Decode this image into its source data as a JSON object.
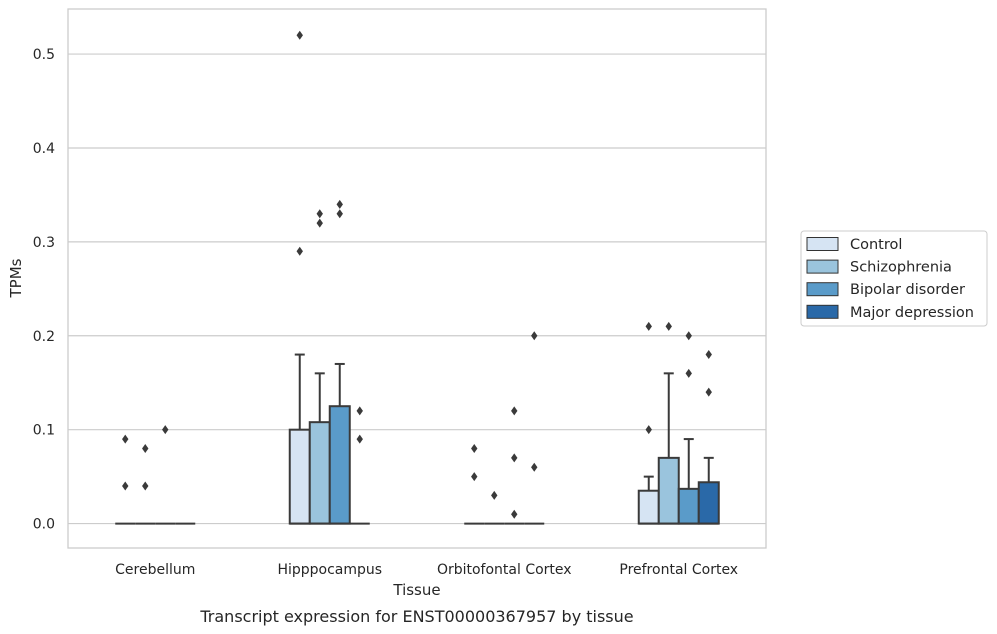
{
  "chart_data": {
    "type": "box",
    "title": "",
    "caption": "Transcript expression for ENST00000367957 by tissue",
    "xlabel": "Tissue",
    "ylabel": "TPMs",
    "ylim": [
      -0.026,
      0.548
    ],
    "yticks": [
      "0.0",
      "0.1",
      "0.2",
      "0.3",
      "0.4",
      "0.5"
    ],
    "ytick_values": [
      0.0,
      0.1,
      0.2,
      0.3,
      0.4,
      0.5
    ],
    "grid": true,
    "legend_position": "right",
    "categories": [
      "Cerebellum",
      "Hipppocampus",
      "Orbitofontal Cortex",
      "Prefrontal Cortex"
    ],
    "series": [
      {
        "name": "Control",
        "color": "#d6e4f3",
        "boxes": [
          {
            "q1": 0,
            "median": 0,
            "q3": 0,
            "whisker_low": 0,
            "whisker_high": 0,
            "outliers": [
              0.04,
              0.09
            ]
          },
          {
            "q1": 0,
            "median": 0,
            "q3": 0.1,
            "whisker_low": 0,
            "whisker_high": 0.18,
            "outliers": [
              0.29,
              0.52
            ]
          },
          {
            "q1": 0,
            "median": 0,
            "q3": 0,
            "whisker_low": 0,
            "whisker_high": 0,
            "outliers": [
              0.05,
              0.08
            ]
          },
          {
            "q1": 0,
            "median": 0,
            "q3": 0.035,
            "whisker_low": 0,
            "whisker_high": 0.05,
            "outliers": [
              0.1,
              0.21
            ]
          }
        ]
      },
      {
        "name": "Schizophrenia",
        "color": "#9ac4dd",
        "boxes": [
          {
            "q1": 0,
            "median": 0,
            "q3": 0,
            "whisker_low": 0,
            "whisker_high": 0,
            "outliers": [
              0.04,
              0.08
            ]
          },
          {
            "q1": 0,
            "median": 0,
            "q3": 0.108,
            "whisker_low": 0,
            "whisker_high": 0.16,
            "outliers": [
              0.32,
              0.33
            ]
          },
          {
            "q1": 0,
            "median": 0,
            "q3": 0,
            "whisker_low": 0,
            "whisker_high": 0,
            "outliers": [
              0.03
            ]
          },
          {
            "q1": 0,
            "median": 0,
            "q3": 0.07,
            "whisker_low": 0,
            "whisker_high": 0.16,
            "outliers": [
              0.21
            ]
          }
        ]
      },
      {
        "name": "Bipolar disorder",
        "color": "#5a9bc9",
        "boxes": [
          {
            "q1": 0,
            "median": 0,
            "q3": 0,
            "whisker_low": 0,
            "whisker_high": 0,
            "outliers": [
              0.1
            ]
          },
          {
            "q1": 0,
            "median": 0,
            "q3": 0.125,
            "whisker_low": 0,
            "whisker_high": 0.17,
            "outliers": [
              0.33,
              0.34
            ]
          },
          {
            "q1": 0,
            "median": 0,
            "q3": 0,
            "whisker_low": 0,
            "whisker_high": 0,
            "outliers": [
              0.01,
              0.07,
              0.12
            ]
          },
          {
            "q1": 0,
            "median": 0,
            "q3": 0.037,
            "whisker_low": 0,
            "whisker_high": 0.09,
            "outliers": [
              0.16,
              0.2
            ]
          }
        ]
      },
      {
        "name": "Major depression",
        "color": "#2a69a8",
        "boxes": [
          {
            "q1": 0,
            "median": 0,
            "q3": 0,
            "whisker_low": 0,
            "whisker_high": 0,
            "outliers": []
          },
          {
            "q1": 0,
            "median": 0,
            "q3": 0,
            "whisker_low": 0,
            "whisker_high": 0,
            "outliers": [
              0.09,
              0.12
            ]
          },
          {
            "q1": 0,
            "median": 0,
            "q3": 0,
            "whisker_low": 0,
            "whisker_high": 0,
            "outliers": [
              0.06,
              0.2
            ]
          },
          {
            "q1": 0,
            "median": 0,
            "q3": 0.044,
            "whisker_low": 0,
            "whisker_high": 0.07,
            "outliers": [
              0.14,
              0.18
            ]
          }
        ]
      }
    ],
    "colors": {
      "grid": "#cccccc",
      "frame": "#cccccc",
      "stroke": "#3a3a3a",
      "outlier": "#3a3a3a"
    }
  }
}
